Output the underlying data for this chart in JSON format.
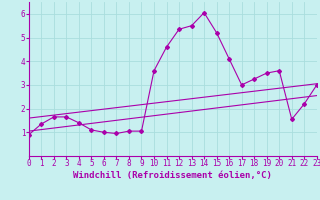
{
  "xlabel": "Windchill (Refroidissement éolien,°C)",
  "bg_color": "#c8f0f0",
  "line_color": "#aa00aa",
  "grid_color": "#aadddd",
  "spine_color": "#aa00aa",
  "x_min": 0,
  "x_max": 23,
  "y_min": 0,
  "y_max": 6.5,
  "main_series": [
    [
      0,
      0.9
    ],
    [
      1,
      1.35
    ],
    [
      2,
      1.65
    ],
    [
      3,
      1.65
    ],
    [
      4,
      1.4
    ],
    [
      5,
      1.1
    ],
    [
      6,
      1.0
    ],
    [
      7,
      0.95
    ],
    [
      8,
      1.05
    ],
    [
      9,
      1.05
    ],
    [
      10,
      3.6
    ],
    [
      11,
      4.6
    ],
    [
      12,
      5.35
    ],
    [
      13,
      5.5
    ],
    [
      14,
      6.05
    ],
    [
      15,
      5.2
    ],
    [
      16,
      4.1
    ],
    [
      17,
      3.0
    ],
    [
      18,
      3.25
    ],
    [
      19,
      3.5
    ],
    [
      20,
      3.6
    ],
    [
      21,
      1.55
    ],
    [
      22,
      2.2
    ],
    [
      23,
      3.0
    ]
  ],
  "linear1": [
    [
      0,
      1.05
    ],
    [
      23,
      2.55
    ]
  ],
  "linear2": [
    [
      0,
      1.6
    ],
    [
      23,
      3.05
    ]
  ],
  "xticks": [
    0,
    1,
    2,
    3,
    4,
    5,
    6,
    7,
    8,
    9,
    10,
    11,
    12,
    13,
    14,
    15,
    16,
    17,
    18,
    19,
    20,
    21,
    22,
    23
  ],
  "yticks": [
    1,
    2,
    3,
    4,
    5,
    6
  ],
  "font_size_xlabel": 6.5,
  "font_size_ticks": 5.5
}
